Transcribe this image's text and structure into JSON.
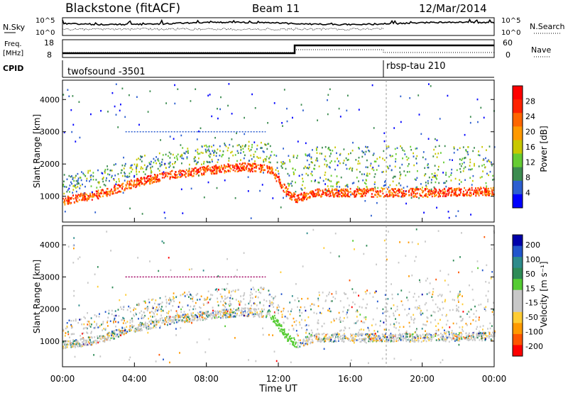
{
  "header": {
    "station": "Blackstone (fitACF)",
    "beam": "Beam 11",
    "date": "12/Mar/2014"
  },
  "noise_panel": {
    "left_label": "N.Sky",
    "right_label": "N.Search",
    "left_ticks": [
      "10^5",
      "10^0"
    ],
    "right_ticks": [
      "10^5",
      "10^0"
    ]
  },
  "freq_panel": {
    "left_label_1": "Freq.",
    "left_label_2": "[MHz]",
    "right_label": "Nave",
    "left_ticks": [
      "18",
      "8"
    ],
    "right_ticks": [
      "60",
      "0"
    ]
  },
  "cpid_panel": {
    "label": "CPID",
    "programs": [
      {
        "name": "twofsound -3501",
        "start_hour": 0
      },
      {
        "name": "rbsp-tau 210",
        "start_hour": 18
      }
    ]
  },
  "colors": {
    "power_scale": [
      "#0000ff",
      "#2d5fd0",
      "#3c8c50",
      "#66cc33",
      "#c8c800",
      "#ff9900",
      "#ff6600",
      "#ff2200",
      "#ff0000"
    ],
    "velocity_scale": [
      "#ff0000",
      "#ff5500",
      "#ff9900",
      "#ffcc33",
      "#c8c8c8",
      "#c8c8c8",
      "#55cc33",
      "#2e8b57",
      "#2e8b8b",
      "#2255cc",
      "#0000aa"
    ]
  },
  "chart_data": [
    {
      "type": "heatmap",
      "name": "power",
      "ylabel": "Slant Range [km]",
      "y_ticks": [
        "1000",
        "2000",
        "3000",
        "4000"
      ],
      "ylim": [
        200,
        4600
      ],
      "xlim": [
        0,
        24
      ],
      "colorbar": {
        "label": "Power [dB]",
        "ticks": [
          "4",
          "8",
          "12",
          "16",
          "20",
          "24",
          "28"
        ],
        "range": [
          0,
          32
        ]
      },
      "echo_band_center_km": [
        {
          "t": 0,
          "r": 850
        },
        {
          "t": 2,
          "r": 1050
        },
        {
          "t": 4,
          "r": 1400
        },
        {
          "t": 6,
          "r": 1650
        },
        {
          "t": 8,
          "r": 1800
        },
        {
          "t": 10,
          "r": 1900
        },
        {
          "t": 11.5,
          "r": 1850
        },
        {
          "t": 12.5,
          "r": 1100
        },
        {
          "t": 13,
          "r": 900
        },
        {
          "t": 14,
          "r": 1100
        },
        {
          "t": 16,
          "r": 1100
        },
        {
          "t": 18,
          "r": 1100
        },
        {
          "t": 20,
          "r": 1100
        },
        {
          "t": 24,
          "r": 1150
        }
      ]
    },
    {
      "type": "heatmap",
      "name": "velocity",
      "ylabel": "Slant Range [km]",
      "y_ticks": [
        "1000",
        "2000",
        "3000",
        "4000"
      ],
      "ylim": [
        200,
        4600
      ],
      "xlim": [
        0,
        24
      ],
      "colorbar": {
        "label": "Velocity [m s⁻¹]",
        "ticks": [
          "200",
          "100",
          "50",
          "15",
          "-15",
          "-50",
          "-100",
          "-200"
        ]
      }
    }
  ],
  "x_axis": {
    "label": "Time UT",
    "ticks": [
      "00:00",
      "04:00",
      "08:00",
      "12:00",
      "16:00",
      "20:00",
      "00:00"
    ]
  }
}
